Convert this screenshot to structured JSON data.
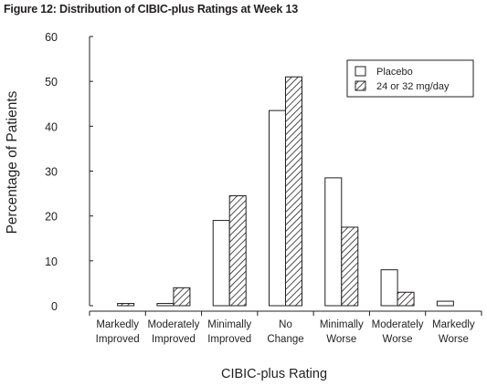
{
  "figure_title": "Figure 12: Distribution of CIBIC-plus Ratings at Week 13",
  "chart_data": {
    "type": "bar",
    "title": "Figure 12: Distribution of CIBIC-plus Ratings at Week 13",
    "xlabel": "CIBIC-plus Rating",
    "ylabel": "Percentage of Patients",
    "ylim": [
      0,
      60
    ],
    "yticks": [
      "0",
      "10",
      "20",
      "30",
      "40",
      "50",
      "60"
    ],
    "categories": [
      [
        "Markedly",
        "Improved"
      ],
      [
        "Moderately",
        "Improved"
      ],
      [
        "Minimally",
        "Improved"
      ],
      [
        "No",
        "Change"
      ],
      [
        "Minimally",
        "Worse"
      ],
      [
        "Moderately",
        "Worse"
      ],
      [
        "Markedly",
        "Worse"
      ]
    ],
    "series": [
      {
        "name": "Placebo",
        "pattern": "none",
        "values": [
          0,
          0.5,
          19,
          43.5,
          28.5,
          8,
          1
        ]
      },
      {
        "name": "24 or 32 mg/day",
        "pattern": "diagonal-hatch",
        "values": [
          0.5,
          4,
          24.5,
          51,
          17.5,
          3,
          0
        ]
      }
    ],
    "legend_position": "top-right",
    "grid": false,
    "colors": {
      "ink": "#231f20",
      "fill": "#ffffff"
    }
  }
}
